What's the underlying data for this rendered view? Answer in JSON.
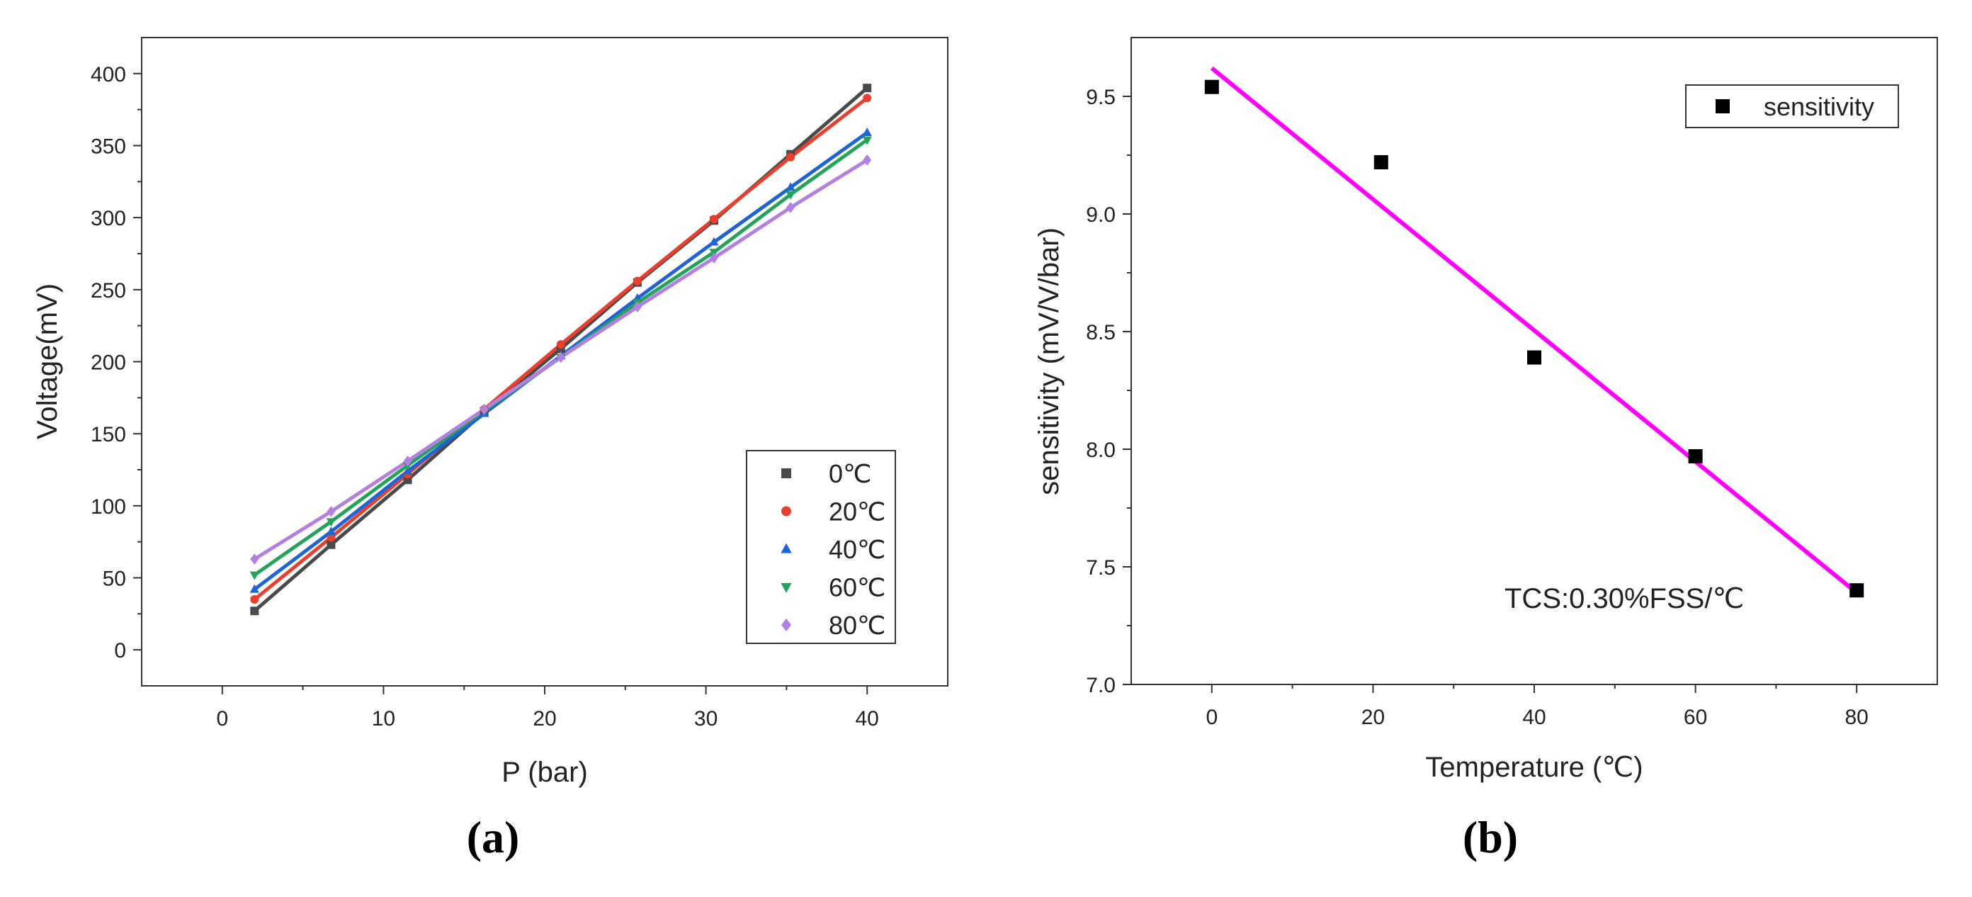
{
  "chart_data": [
    {
      "type": "line",
      "panel_label": "(a)",
      "title": "",
      "xlabel": "P (bar)",
      "ylabel": "Voltage(mV)",
      "xlim": [
        -5,
        45
      ],
      "ylim": [
        -25,
        425
      ],
      "xticks": [
        0,
        10,
        20,
        30,
        40
      ],
      "yticks": [
        0,
        50,
        100,
        150,
        200,
        250,
        300,
        350,
        400
      ],
      "x": [
        2,
        6.75,
        11.5,
        16.25,
        21,
        25.75,
        30.5,
        35.25,
        40
      ],
      "grid": false,
      "legend_position": "bottom-right",
      "series": [
        {
          "name": "0℃",
          "color": "#4a4a4a",
          "marker": "square",
          "values": [
            27,
            73,
            118,
            165,
            209,
            255,
            298,
            344,
            390
          ]
        },
        {
          "name": "20℃",
          "color": "#e8402e",
          "marker": "circle",
          "values": [
            35,
            78,
            122,
            167,
            212,
            256,
            299,
            342,
            383
          ]
        },
        {
          "name": "40℃",
          "color": "#1f64d6",
          "marker": "triangle-up",
          "values": [
            42,
            82,
            124,
            164,
            204,
            244,
            283,
            321,
            359
          ]
        },
        {
          "name": "60℃",
          "color": "#26a35a",
          "marker": "triangle-down",
          "values": [
            52,
            89,
            128,
            166,
            203,
            241,
            276,
            316,
            354
          ]
        },
        {
          "name": "80℃",
          "color": "#b37fe0",
          "marker": "diamond",
          "values": [
            63,
            96,
            131,
            167,
            203,
            238,
            272,
            307,
            340
          ]
        }
      ]
    },
    {
      "type": "scatter",
      "panel_label": "(b)",
      "title": "",
      "xlabel": "Temperature (℃)",
      "ylabel": "sensitivity (mV/V/bar)",
      "xlim": [
        -10,
        90
      ],
      "ylim": [
        7.0,
        9.75
      ],
      "xticks": [
        0,
        20,
        40,
        60,
        80
      ],
      "yticks": [
        7.0,
        7.5,
        8.0,
        8.5,
        9.0,
        9.5
      ],
      "ytick_labels": [
        "7.0",
        "7.5",
        "8.0",
        "8.5",
        "9.0",
        "9.5"
      ],
      "grid": false,
      "legend_position": "top-right",
      "series": [
        {
          "name": "sensitivity",
          "color": "#000000",
          "marker": "square",
          "x": [
            0,
            21,
            40,
            60,
            80
          ],
          "values": [
            9.54,
            9.22,
            8.39,
            7.97,
            7.4
          ]
        }
      ],
      "fit_line": {
        "color": "#ff00ff",
        "x": [
          0,
          80
        ],
        "y": [
          9.62,
          7.39
        ]
      },
      "annotation": "TCS:0.30%FSS/℃"
    }
  ]
}
